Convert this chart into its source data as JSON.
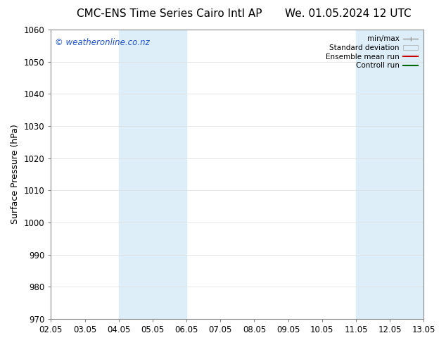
{
  "title_left": "CMC-ENS Time Series Cairo Intl AP",
  "title_right": "We. 01.05.2024 12 UTC",
  "ylabel": "Surface Pressure (hPa)",
  "ylim": [
    970,
    1060
  ],
  "yticks": [
    970,
    980,
    990,
    1000,
    1010,
    1020,
    1030,
    1040,
    1050,
    1060
  ],
  "xlabels": [
    "02.05",
    "03.05",
    "04.05",
    "05.05",
    "06.05",
    "07.05",
    "08.05",
    "09.05",
    "10.05",
    "11.05",
    "12.05",
    "13.05"
  ],
  "x_positions": [
    0,
    1,
    2,
    3,
    4,
    5,
    6,
    7,
    8,
    9,
    10,
    11
  ],
  "xlim": [
    0,
    11
  ],
  "shaded_bands": [
    {
      "x_start": 2,
      "x_end": 4,
      "color": "#ddeef8"
    },
    {
      "x_start": 9,
      "x_end": 11,
      "color": "#ddeef8"
    }
  ],
  "watermark_text": "© weatheronline.co.nz",
  "watermark_color": "#2255cc",
  "legend_labels": [
    "min/max",
    "Standard deviation",
    "Ensemble mean run",
    "Controll run"
  ],
  "legend_colors": [
    "#999999",
    "#cccccc",
    "#cc0000",
    "#006600"
  ],
  "background_color": "#ffffff",
  "plot_bg_color": "#ffffff",
  "grid_color": "#dddddd",
  "title_fontsize": 11,
  "axis_label_fontsize": 9,
  "tick_fontsize": 8.5
}
